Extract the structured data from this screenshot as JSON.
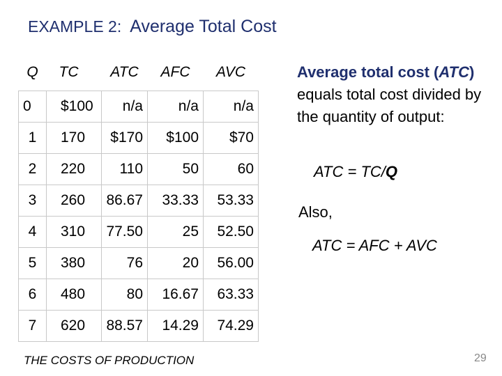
{
  "title": {
    "prefix": "EXAMPLE 2:",
    "main": "Average Total Cost"
  },
  "table": {
    "headers": [
      "Q",
      "TC",
      "ATC",
      "AFC",
      "AVC"
    ],
    "rows": [
      [
        "0",
        "$100",
        "n/a",
        "n/a",
        "n/a"
      ],
      [
        "1",
        "170",
        "$170",
        "$100",
        "$70"
      ],
      [
        "2",
        "220",
        "110",
        "50",
        "60"
      ],
      [
        "3",
        "260",
        "86.67",
        "33.33",
        "53.33"
      ],
      [
        "4",
        "310",
        "77.50",
        "25",
        "52.50"
      ],
      [
        "5",
        "380",
        "76",
        "20",
        "56.00"
      ],
      [
        "6",
        "480",
        "80",
        "16.67",
        "63.33"
      ],
      [
        "7",
        "620",
        "88.57",
        "14.29",
        "74.29"
      ]
    ]
  },
  "explanation": {
    "term": "Average total cost",
    "open_paren": "(",
    "abbr": "ATC",
    "close_paren": ")",
    "rest": " equals total cost divided by the quantity of output:"
  },
  "formula1": {
    "lhs": "ATC = TC/",
    "q": "Q"
  },
  "also": "Also,",
  "formula2": "ATC = AFC + AVC",
  "footer": "THE COSTS OF PRODUCTION",
  "page_number": "29",
  "colors": {
    "title": "#1f2f6e",
    "term": "#1f2f6e",
    "page_number": "#888888"
  }
}
